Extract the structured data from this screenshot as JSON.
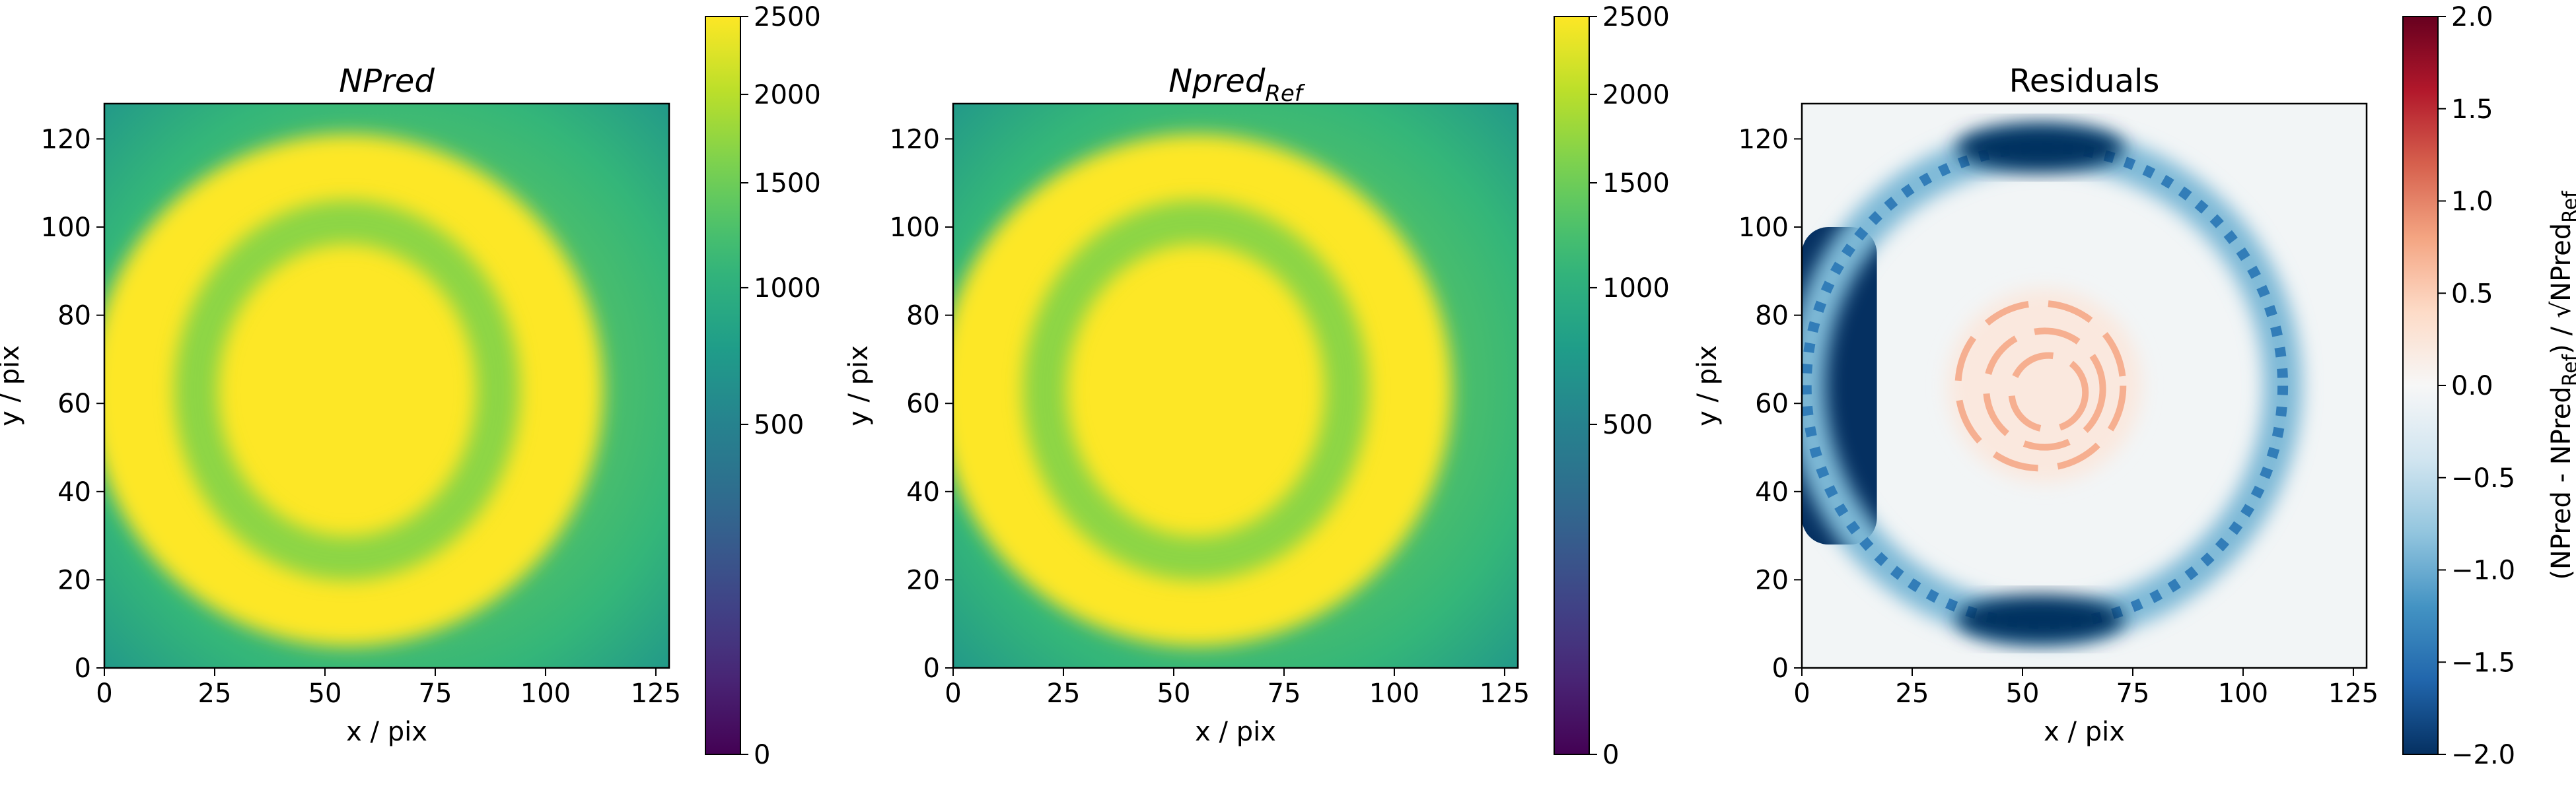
{
  "colors": {
    "viridis": [
      "#440154",
      "#482878",
      "#3e4989",
      "#31688e",
      "#26828e",
      "#1f9e89",
      "#35b779",
      "#6ece58",
      "#b5de2b",
      "#fde725"
    ],
    "rdbu": [
      "#67001f",
      "#b2182b",
      "#d6604d",
      "#f4a582",
      "#fddbc7",
      "#f7f7f7",
      "#d1e5f0",
      "#92c5de",
      "#4393c3",
      "#2166ac",
      "#053061"
    ]
  },
  "chart_data": [
    {
      "type": "heatmap",
      "title": "NPred",
      "title_sub": "",
      "xlabel": "x / pix",
      "ylabel": "y / pix",
      "xlim": [
        0,
        128
      ],
      "ylim": [
        0,
        128
      ],
      "xticks": [
        "0",
        "25",
        "50",
        "75",
        "100",
        "125"
      ],
      "yticks": [
        "0",
        "20",
        "40",
        "60",
        "80",
        "100",
        "120"
      ],
      "colorscale": "viridis",
      "stretch": "sqrt",
      "clim": [
        0,
        2500
      ],
      "cbar_ticks": [
        "0",
        "500",
        "1000",
        "1500",
        "2000",
        "2500"
      ],
      "cbar_label": "",
      "cbar_label_sub": "",
      "features": [
        {
          "shape": "disk",
          "center": [
            55,
            63
          ],
          "radius": 58,
          "value": 2500
        },
        {
          "shape": "ring",
          "center": [
            55,
            63
          ],
          "radius": 36,
          "width": 10,
          "value": 1700
        }
      ]
    },
    {
      "type": "heatmap",
      "title": "Npred",
      "title_sub": "Ref",
      "xlabel": "x / pix",
      "ylabel": "y / pix",
      "xlim": [
        0,
        128
      ],
      "ylim": [
        0,
        128
      ],
      "xticks": [
        "0",
        "25",
        "50",
        "75",
        "100",
        "125"
      ],
      "yticks": [
        "0",
        "20",
        "40",
        "60",
        "80",
        "100",
        "120"
      ],
      "colorscale": "viridis",
      "stretch": "sqrt",
      "clim": [
        0,
        2500
      ],
      "cbar_ticks": [
        "0",
        "500",
        "1000",
        "1500",
        "2000",
        "2500"
      ],
      "cbar_label": "",
      "cbar_label_sub": "",
      "features": [
        {
          "shape": "disk",
          "center": [
            55,
            63
          ],
          "radius": 58,
          "value": 2500
        },
        {
          "shape": "ring",
          "center": [
            55,
            63
          ],
          "radius": 36,
          "width": 10,
          "value": 1700
        }
      ]
    },
    {
      "type": "heatmap",
      "title": "Residuals",
      "title_sub": "",
      "xlabel": "x / pix",
      "ylabel": "y / pix",
      "xlim": [
        0,
        128
      ],
      "ylim": [
        0,
        128
      ],
      "xticks": [
        "0",
        "25",
        "50",
        "75",
        "100",
        "125"
      ],
      "yticks": [
        "0",
        "20",
        "40",
        "60",
        "80",
        "100",
        "120"
      ],
      "colorscale": "RdBu",
      "stretch": "linear",
      "clim": [
        -2.0,
        2.0
      ],
      "cbar_ticks": [
        "−2.0",
        "−1.5",
        "−1.0",
        "−0.5",
        "0.0",
        "0.5",
        "1.0",
        "1.5",
        "2.0"
      ],
      "cbar_label": "(NPred - NPred",
      "cbar_label_sub": "Ref",
      "cbar_label_end": ") / √NPred",
      "features": [
        {
          "shape": "rect",
          "x": [
            0,
            17
          ],
          "y": [
            28,
            100
          ],
          "value": -2.0
        },
        {
          "shape": "ring",
          "center": [
            55,
            64
          ],
          "radius": 54,
          "width": 4,
          "value": -0.9
        },
        {
          "shape": "blob",
          "center": [
            54,
            118
          ],
          "radius": 10,
          "value": -2.0
        },
        {
          "shape": "blob",
          "center": [
            54,
            11
          ],
          "radius": 10,
          "value": -2.0
        },
        {
          "shape": "disk",
          "center": [
            55,
            64
          ],
          "radius": 22,
          "value": 0.6
        }
      ]
    }
  ]
}
